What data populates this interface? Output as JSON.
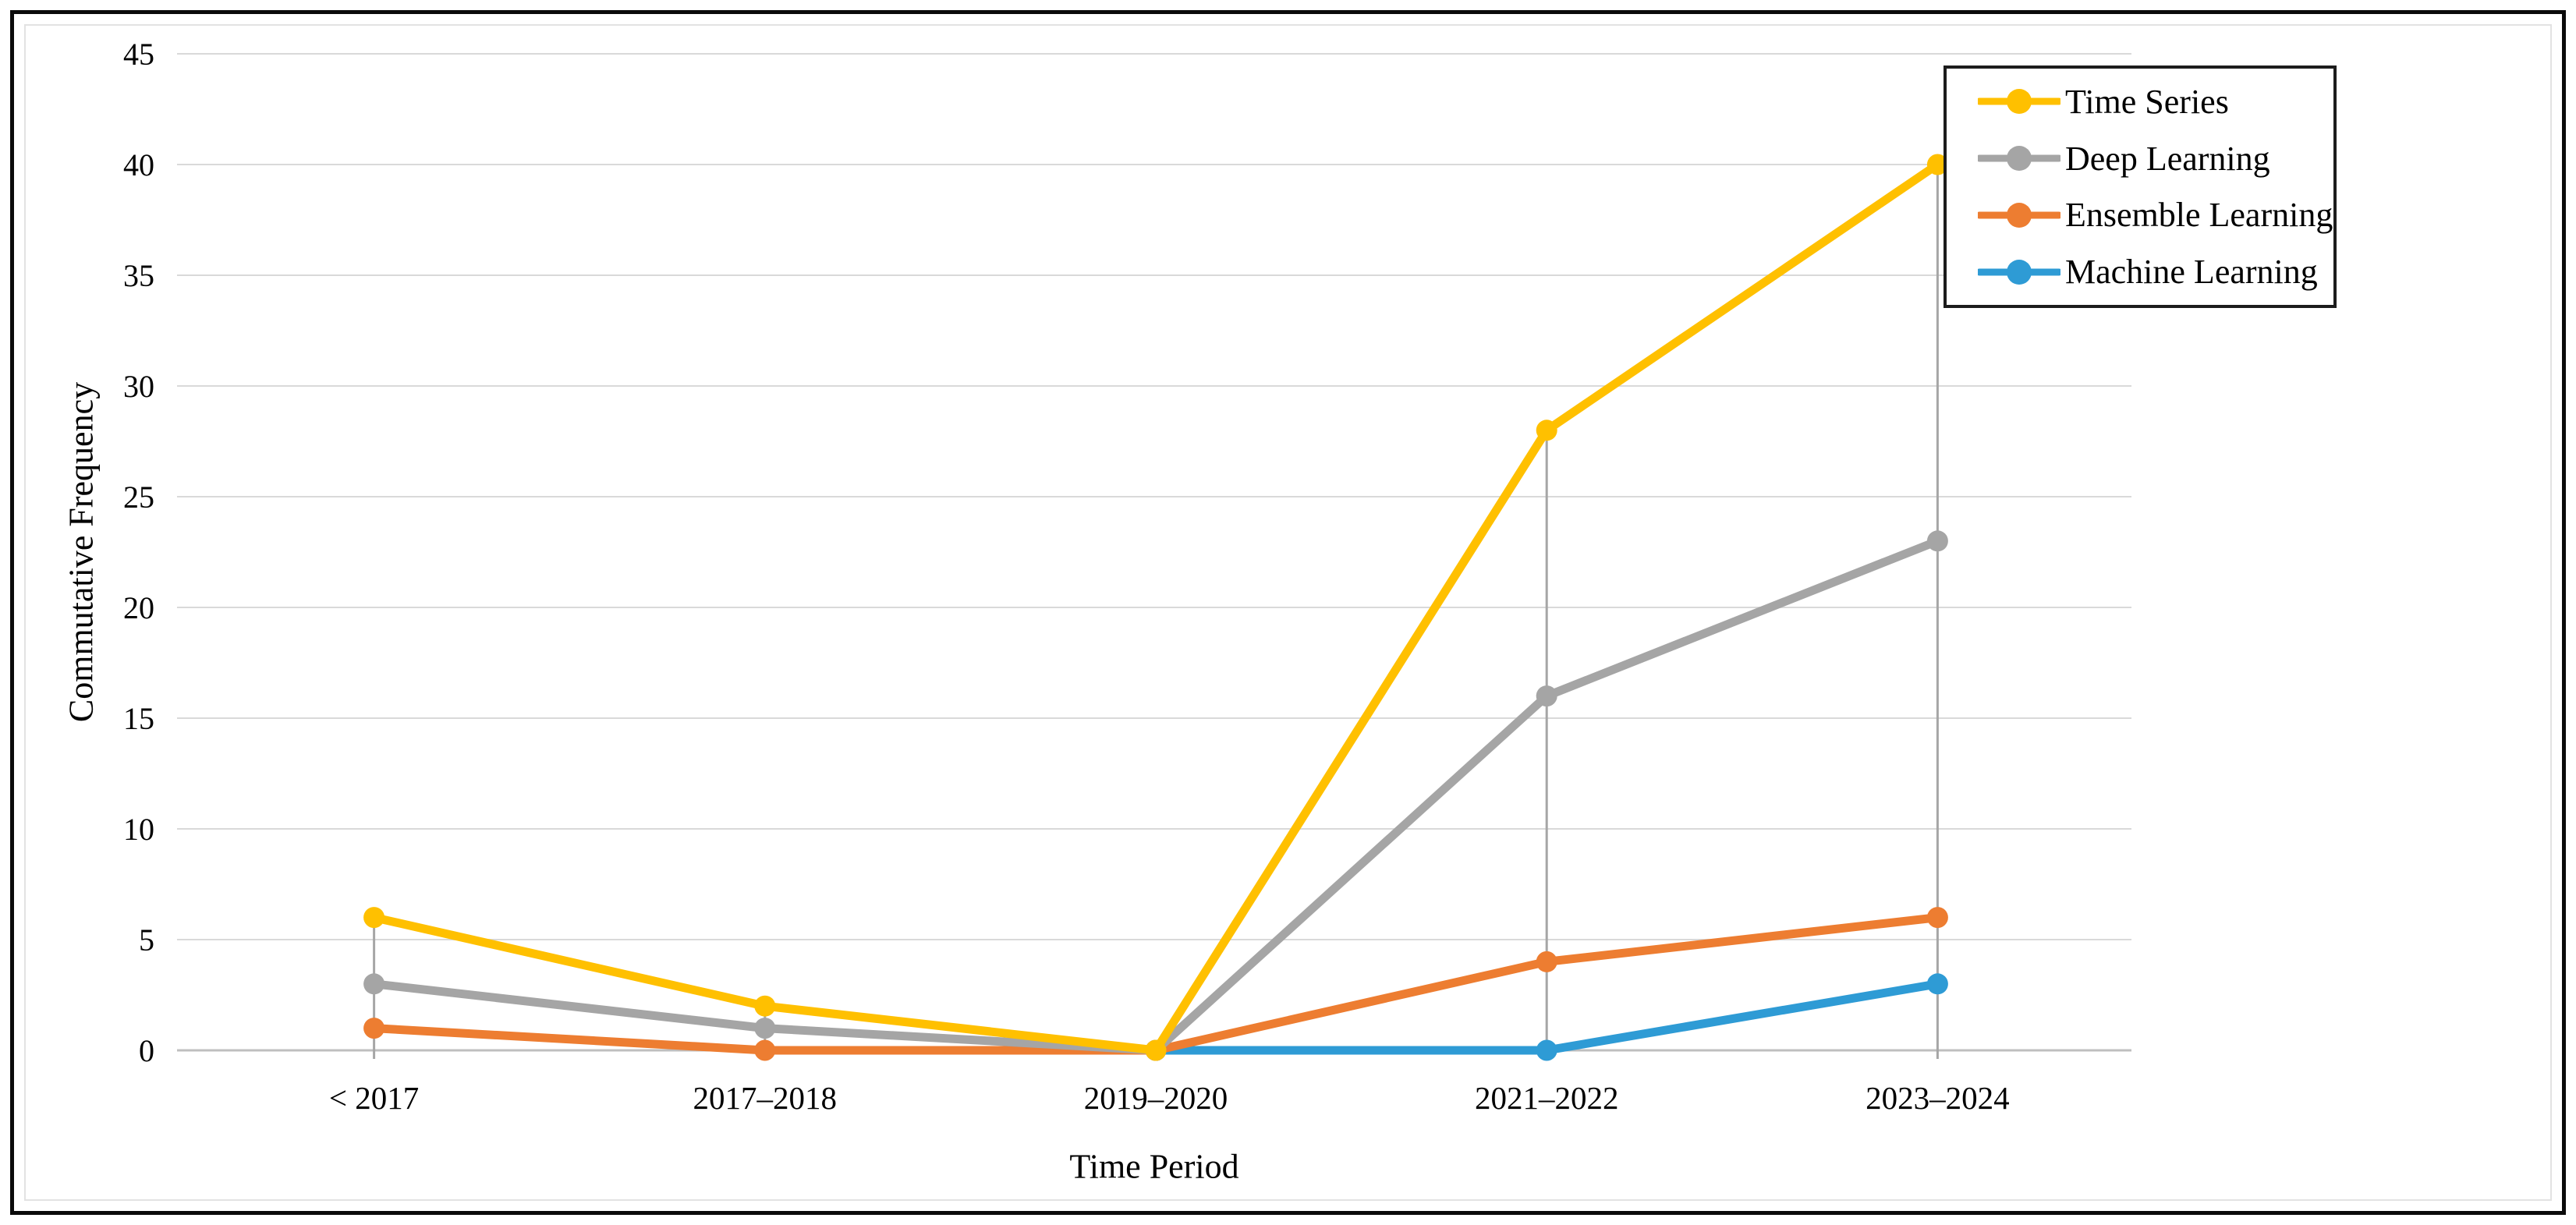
{
  "figure": {
    "frame_color": "#0a0a0a",
    "background": "#ffffff"
  },
  "chart_data": {
    "type": "line",
    "title": "",
    "xlabel": "Time Period",
    "ylabel": "Commutative Frequency",
    "categories": [
      "< 2017",
      "2017–2018",
      "2019–2020",
      "2021–2022",
      "2023–2024"
    ],
    "ylim": [
      0,
      45
    ],
    "ytick_step": 5,
    "grid": "horizontal",
    "drop_lines": true,
    "legend_position": "top-right-inside",
    "legend_border_color": "#1c1c1c",
    "series": [
      {
        "name": "Time Series",
        "color": "#FFC000",
        "values": [
          6,
          2,
          0,
          28,
          40
        ]
      },
      {
        "name": "Deep Learning",
        "color": "#A5A5A5",
        "values": [
          3,
          1,
          0,
          16,
          23
        ]
      },
      {
        "name": "Ensemble Learning",
        "color": "#ED7D31",
        "values": [
          1,
          0,
          0,
          4,
          6
        ]
      },
      {
        "name": "Machine Learning",
        "color": "#2E9BD5",
        "values": [
          null,
          null,
          0,
          0,
          3
        ]
      }
    ],
    "style_colors": {
      "gridline": "#D9D9D9",
      "axis_line": "#BFBFBF",
      "drop_line": "#A6A6A6",
      "text": "#000000"
    }
  }
}
